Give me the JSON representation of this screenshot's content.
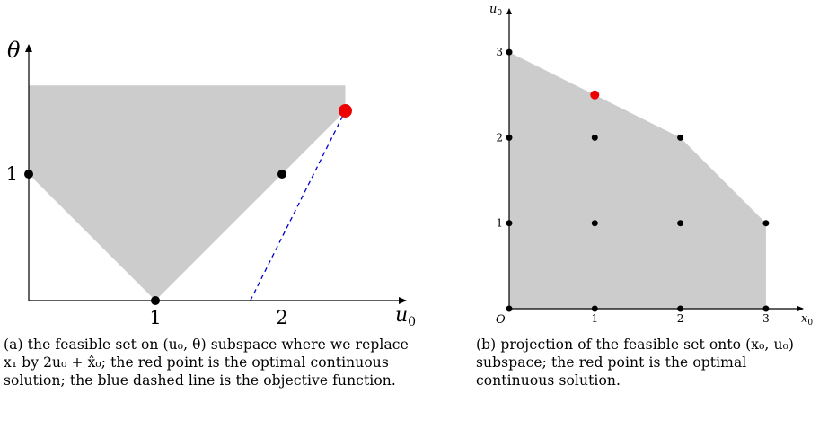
{
  "panel_a": {
    "axis_x_label": "u",
    "axis_x_sub": "0",
    "axis_y_label": "θ",
    "x_ticks": [
      "1",
      "2"
    ],
    "y_ticks": [
      "1"
    ],
    "fill_color": "#cccccc",
    "optimum_color": "#ee0000",
    "objective_color": "#0000cc",
    "caption": "(a) the feasible set on (u₀, θ) subspace where we replace x₁ by 2u₀ + x̂₀; the red point is the optimal continuous solution; the blue dashed line is the objective function."
  },
  "panel_b": {
    "axis_x_label": "x",
    "axis_x_sub": "0",
    "axis_y_label": "u",
    "axis_y_sub": "0",
    "origin_label": "O",
    "x_ticks": [
      "1",
      "2",
      "3"
    ],
    "y_ticks": [
      "1",
      "2",
      "3"
    ],
    "fill_color": "#cccccc",
    "optimum_color": "#ee0000",
    "caption": "(b) projection of the feasible set onto (x₀, u₀) subspace; the red point is the optimal continuous solution."
  },
  "chart_data": [
    {
      "type": "scatter",
      "subspace": "(u0, theta)",
      "feasible_region": [
        [
          0,
          1
        ],
        [
          1,
          0
        ],
        [
          2.5,
          1.5
        ],
        [
          2.5,
          1.7
        ],
        [
          0,
          1.7
        ]
      ],
      "points": [
        [
          0,
          1
        ],
        [
          1,
          0
        ],
        [
          2,
          1
        ]
      ],
      "optimum": [
        2.5,
        1.5
      ],
      "objective_line": [
        [
          1.75,
          0
        ],
        [
          2.5,
          1.5
        ]
      ]
    },
    {
      "type": "scatter",
      "subspace": "(x0, u0)",
      "xlim": [
        0,
        3
      ],
      "ylim": [
        0,
        3
      ],
      "feasible_region": [
        [
          0,
          0
        ],
        [
          3,
          0
        ],
        [
          3,
          1
        ],
        [
          2,
          2
        ],
        [
          1,
          2.5
        ],
        [
          0,
          3
        ]
      ],
      "points": [
        [
          0,
          0
        ],
        [
          1,
          0
        ],
        [
          2,
          0
        ],
        [
          3,
          0
        ],
        [
          0,
          1
        ],
        [
          1,
          1
        ],
        [
          2,
          1
        ],
        [
          3,
          1
        ],
        [
          0,
          2
        ],
        [
          1,
          2
        ],
        [
          2,
          2
        ],
        [
          0,
          3
        ]
      ],
      "optimum": [
        1,
        2.5
      ]
    }
  ]
}
